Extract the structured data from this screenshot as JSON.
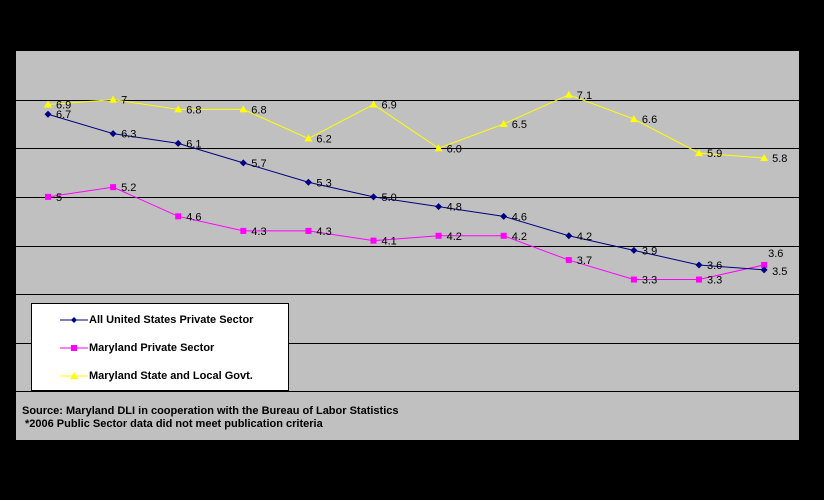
{
  "chart_data": {
    "type": "line",
    "categories": [
      "",
      "",
      "",
      "",
      "",
      "",
      "",
      "",
      "",
      "",
      "",
      ""
    ],
    "series": [
      {
        "name": "All United States Private Sector",
        "color": "#000080",
        "marker": "diamond",
        "values": [
          6.7,
          6.3,
          6.1,
          5.7,
          5.3,
          5.0,
          4.8,
          4.6,
          4.2,
          3.9,
          3.6,
          3.5
        ],
        "labels": [
          "6.7",
          "6.3",
          "6.1",
          "5.7",
          "5.3",
          "5.0",
          "4.8",
          "4.6",
          "4.2",
          "3.9",
          "3.6",
          "3.5"
        ]
      },
      {
        "name": "Maryland Private Sector",
        "color": "#ff00ff",
        "marker": "square",
        "values": [
          5.0,
          5.2,
          4.6,
          4.3,
          4.3,
          4.1,
          4.2,
          4.2,
          3.7,
          3.3,
          3.3,
          3.6
        ],
        "labels": [
          "5",
          "5.2",
          "4.6",
          "4.3",
          "4.3",
          "4.1",
          "4.2",
          "4.2",
          "3.7",
          "3.3",
          "3.3",
          "3.6"
        ]
      },
      {
        "name": "Maryland State and Local Govt.",
        "color": "#ffff00",
        "marker": "triangle",
        "values": [
          6.9,
          7.0,
          6.8,
          6.8,
          6.2,
          6.9,
          6.0,
          6.5,
          7.1,
          6.6,
          5.9,
          5.8
        ],
        "labels": [
          "6.9",
          "7",
          "6.8",
          "6.8",
          "6.2",
          "6.9",
          "6.0",
          "6.5",
          "7.1",
          "6.6",
          "5.9",
          "5.8"
        ]
      }
    ],
    "ylim": [
      0,
      8
    ],
    "grid": true,
    "legend_position": "bottom-left",
    "background_color": "#c0c0c0",
    "gridline_color": "#000000"
  },
  "source": {
    "line1": "Source: Maryland DLI in cooperation with the Bureau of Labor Statistics",
    "line2": "*2006 Public Sector data did not meet publication criteria"
  }
}
